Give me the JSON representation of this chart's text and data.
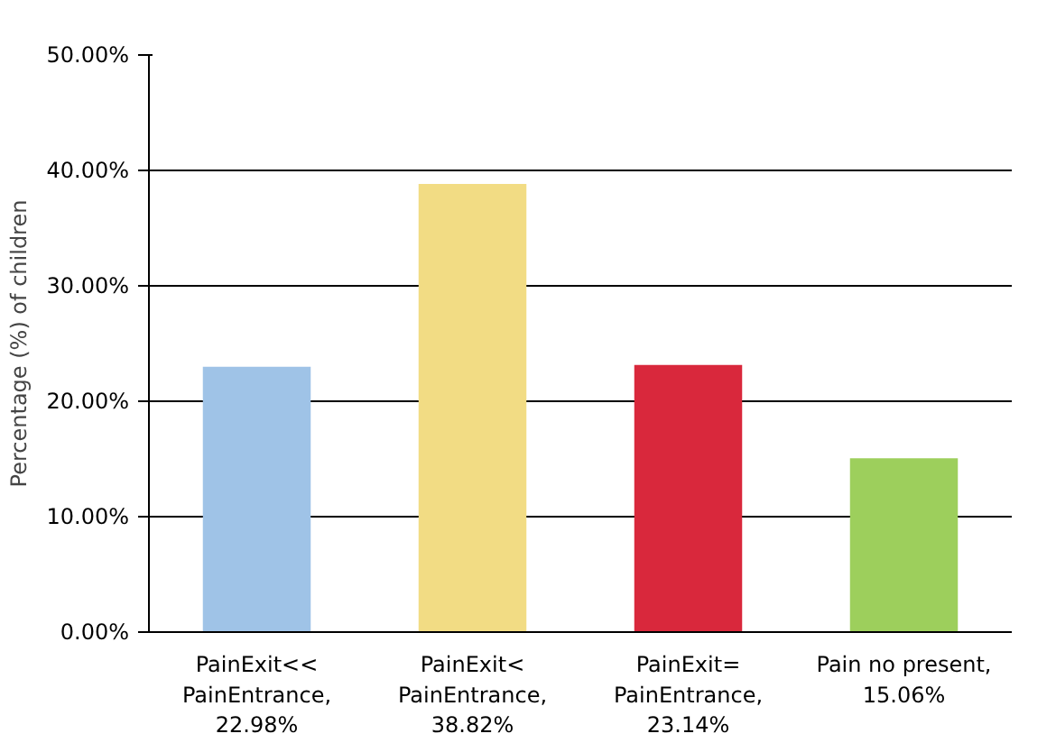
{
  "chart_data": {
    "type": "bar",
    "ylabel": "Percentage (%) of children",
    "categories": [
      "PainExit<< PainEntrance, 22.98%",
      "PainExit< PainEntrance, 38.82%",
      "PainExit= PainEntrance, 23.14%",
      "Pain no present, 15.06%"
    ],
    "values": [
      22.98,
      38.82,
      23.14,
      15.06
    ],
    "colors": [
      "#9fc3e7",
      "#f2dc84",
      "#d9283c",
      "#9dcf5c"
    ],
    "ylim": [
      0,
      50
    ],
    "yticks": [
      {
        "value": 0,
        "label": "0.00%"
      },
      {
        "value": 10,
        "label": "10.00%"
      },
      {
        "value": 20,
        "label": "20.00%"
      },
      {
        "value": 30,
        "label": "30.00%"
      },
      {
        "value": 40,
        "label": "40.00%"
      },
      {
        "value": 50,
        "label": "50.00%"
      }
    ],
    "grid": "y"
  }
}
